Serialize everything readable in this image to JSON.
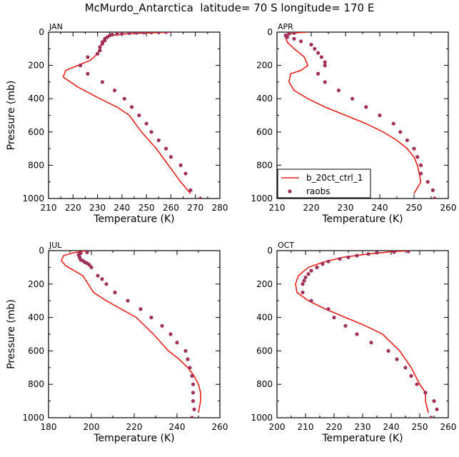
{
  "title": "McMurdo_Antarctica  latitude= 70 S longitude= 170 E",
  "colors": {
    "model": "#e8201a",
    "obs": "#a0305a"
  },
  "chart_data": [
    {
      "type": "line",
      "panel_label": "JAN",
      "xlabel": "Temperature (K)",
      "ylabel": "Pressure (mb)",
      "xlim": [
        210,
        280
      ],
      "xticks": [
        210,
        220,
        230,
        240,
        250,
        260,
        270,
        280
      ],
      "ylim": [
        1000,
        0
      ],
      "yticks": [
        0,
        200,
        400,
        600,
        800,
        1000
      ],
      "series": [
        {
          "name": "b_20ct_ctrl_1",
          "kind": "line",
          "x": [
            268,
            264,
            259,
            254,
            248,
            243,
            238,
            231,
            222,
            216,
            217,
            222,
            227,
            230,
            231,
            232,
            233,
            236,
            242,
            250,
            257,
            260
          ],
          "y": [
            970,
            900,
            800,
            700,
            600,
            500,
            450,
            400,
            330,
            270,
            230,
            200,
            170,
            130,
            90,
            60,
            35,
            20,
            10,
            5,
            2,
            0
          ]
        },
        {
          "name": "raobs",
          "kind": "scatter",
          "x": [
            272,
            268,
            266,
            264,
            260,
            258,
            255,
            252,
            250,
            247,
            244,
            241,
            237,
            232,
            226,
            223,
            226,
            230,
            231,
            231,
            232,
            232,
            233,
            233,
            234,
            235,
            236,
            238,
            240,
            243,
            246,
            249,
            252,
            255,
            258
          ],
          "y": [
            1000,
            950,
            850,
            800,
            750,
            700,
            650,
            600,
            550,
            500,
            450,
            400,
            350,
            300,
            250,
            200,
            150,
            130,
            110,
            90,
            70,
            60,
            50,
            40,
            30,
            20,
            15,
            10,
            8,
            6,
            4,
            3,
            2,
            1,
            0
          ]
        }
      ]
    },
    {
      "type": "line",
      "panel_label": "APR",
      "xlabel": "Temperature (K)",
      "ylabel": "",
      "xlim": [
        210,
        260
      ],
      "xticks": [
        210,
        220,
        230,
        240,
        250,
        260
      ],
      "ylim": [
        1000,
        0
      ],
      "yticks": [
        0,
        200,
        400,
        600,
        800,
        1000
      ],
      "legend": {
        "position": "bottom-left",
        "entries": [
          "b_20ct_ctrl_1",
          "raobs"
        ]
      },
      "series": [
        {
          "name": "b_20ct_ctrl_1",
          "kind": "line",
          "x": [
            250,
            252,
            251.5,
            251,
            250,
            248,
            245,
            241,
            236,
            230,
            224,
            219,
            215,
            213.5,
            214,
            217,
            219,
            218,
            215,
            213,
            212.5,
            213,
            215,
            219
          ],
          "y": [
            970,
            900,
            850,
            800,
            750,
            700,
            650,
            600,
            550,
            500,
            450,
            400,
            350,
            300,
            250,
            230,
            200,
            150,
            100,
            60,
            30,
            15,
            5,
            0
          ]
        },
        {
          "name": "raobs",
          "kind": "scatter",
          "x": [
            256,
            255.5,
            254,
            252,
            252,
            251,
            250,
            248,
            246,
            244,
            240,
            236,
            232,
            228,
            224,
            222,
            224,
            224,
            223,
            222,
            221,
            220,
            217,
            215,
            213,
            212.5,
            213.5,
            215
          ],
          "y": [
            1000,
            950,
            900,
            850,
            800,
            750,
            700,
            650,
            600,
            550,
            500,
            450,
            400,
            350,
            300,
            250,
            200,
            180,
            150,
            125,
            100,
            75,
            55,
            40,
            30,
            20,
            10,
            5
          ]
        }
      ]
    },
    {
      "type": "line",
      "panel_label": "JUL",
      "xlabel": "Temperature (K)",
      "ylabel": "Pressure (mb)",
      "xlim": [
        180,
        260
      ],
      "xticks": [
        180,
        200,
        220,
        240,
        260
      ],
      "ylim": [
        1000,
        0
      ],
      "yticks": [
        0,
        200,
        400,
        600,
        800,
        1000
      ],
      "series": [
        {
          "name": "b_20ct_ctrl_1",
          "kind": "line",
          "x": [
            250,
            251,
            251,
            250,
            248,
            245,
            241,
            236,
            229,
            221,
            214,
            207,
            201,
            198.5,
            196,
            192,
            188,
            186,
            187,
            191,
            195,
            198
          ],
          "y": [
            970,
            900,
            850,
            800,
            750,
            700,
            650,
            600,
            500,
            400,
            350,
            300,
            250,
            200,
            150,
            120,
            90,
            60,
            30,
            15,
            5,
            0
          ]
        },
        {
          "name": "raobs",
          "kind": "scatter",
          "x": [
            247,
            248,
            247.5,
            247.5,
            247.5,
            247,
            246,
            245,
            244,
            240,
            237,
            233,
            228,
            223,
            217,
            211,
            207,
            205,
            203,
            200,
            199,
            198,
            197,
            196,
            195,
            194.5,
            194,
            194.5,
            195,
            198,
            198
          ],
          "y": [
            1000,
            950,
            900,
            850,
            800,
            750,
            700,
            650,
            600,
            550,
            500,
            450,
            400,
            350,
            300,
            250,
            200,
            170,
            150,
            100,
            85,
            75,
            70,
            60,
            55,
            40,
            25,
            20,
            15,
            10,
            5
          ]
        }
      ]
    },
    {
      "type": "line",
      "panel_label": "OCT",
      "xlabel": "Temperature (K)",
      "ylabel": "",
      "xlim": [
        200,
        260
      ],
      "xticks": [
        200,
        210,
        220,
        230,
        240,
        250,
        260
      ],
      "ylim": [
        1000,
        0
      ],
      "yticks": [
        0,
        200,
        400,
        600,
        800,
        1000
      ],
      "series": [
        {
          "name": "b_20ct_ctrl_1",
          "kind": "line",
          "x": [
            253,
            252,
            252,
            250,
            247,
            243,
            237,
            231,
            224,
            217,
            211,
            207,
            206.5,
            207.5,
            211,
            216,
            223,
            232,
            241,
            247
          ],
          "y": [
            970,
            900,
            850,
            800,
            700,
            600,
            500,
            450,
            400,
            350,
            300,
            250,
            200,
            150,
            100,
            70,
            40,
            20,
            5,
            0
          ]
        },
        {
          "name": "raobs",
          "kind": "scatter",
          "x": [
            254,
            256,
            255,
            252,
            249,
            247,
            245,
            242,
            239,
            233,
            228,
            224,
            220,
            218,
            212,
            209,
            209,
            209.5,
            210,
            211,
            212,
            214,
            216,
            218,
            222,
            225,
            228,
            232,
            235,
            241,
            246
          ],
          "y": [
            1000,
            950,
            900,
            850,
            800,
            750,
            700,
            650,
            600,
            550,
            500,
            450,
            400,
            350,
            300,
            250,
            200,
            180,
            160,
            140,
            120,
            100,
            80,
            65,
            50,
            40,
            30,
            20,
            12,
            8,
            5
          ]
        }
      ]
    }
  ]
}
